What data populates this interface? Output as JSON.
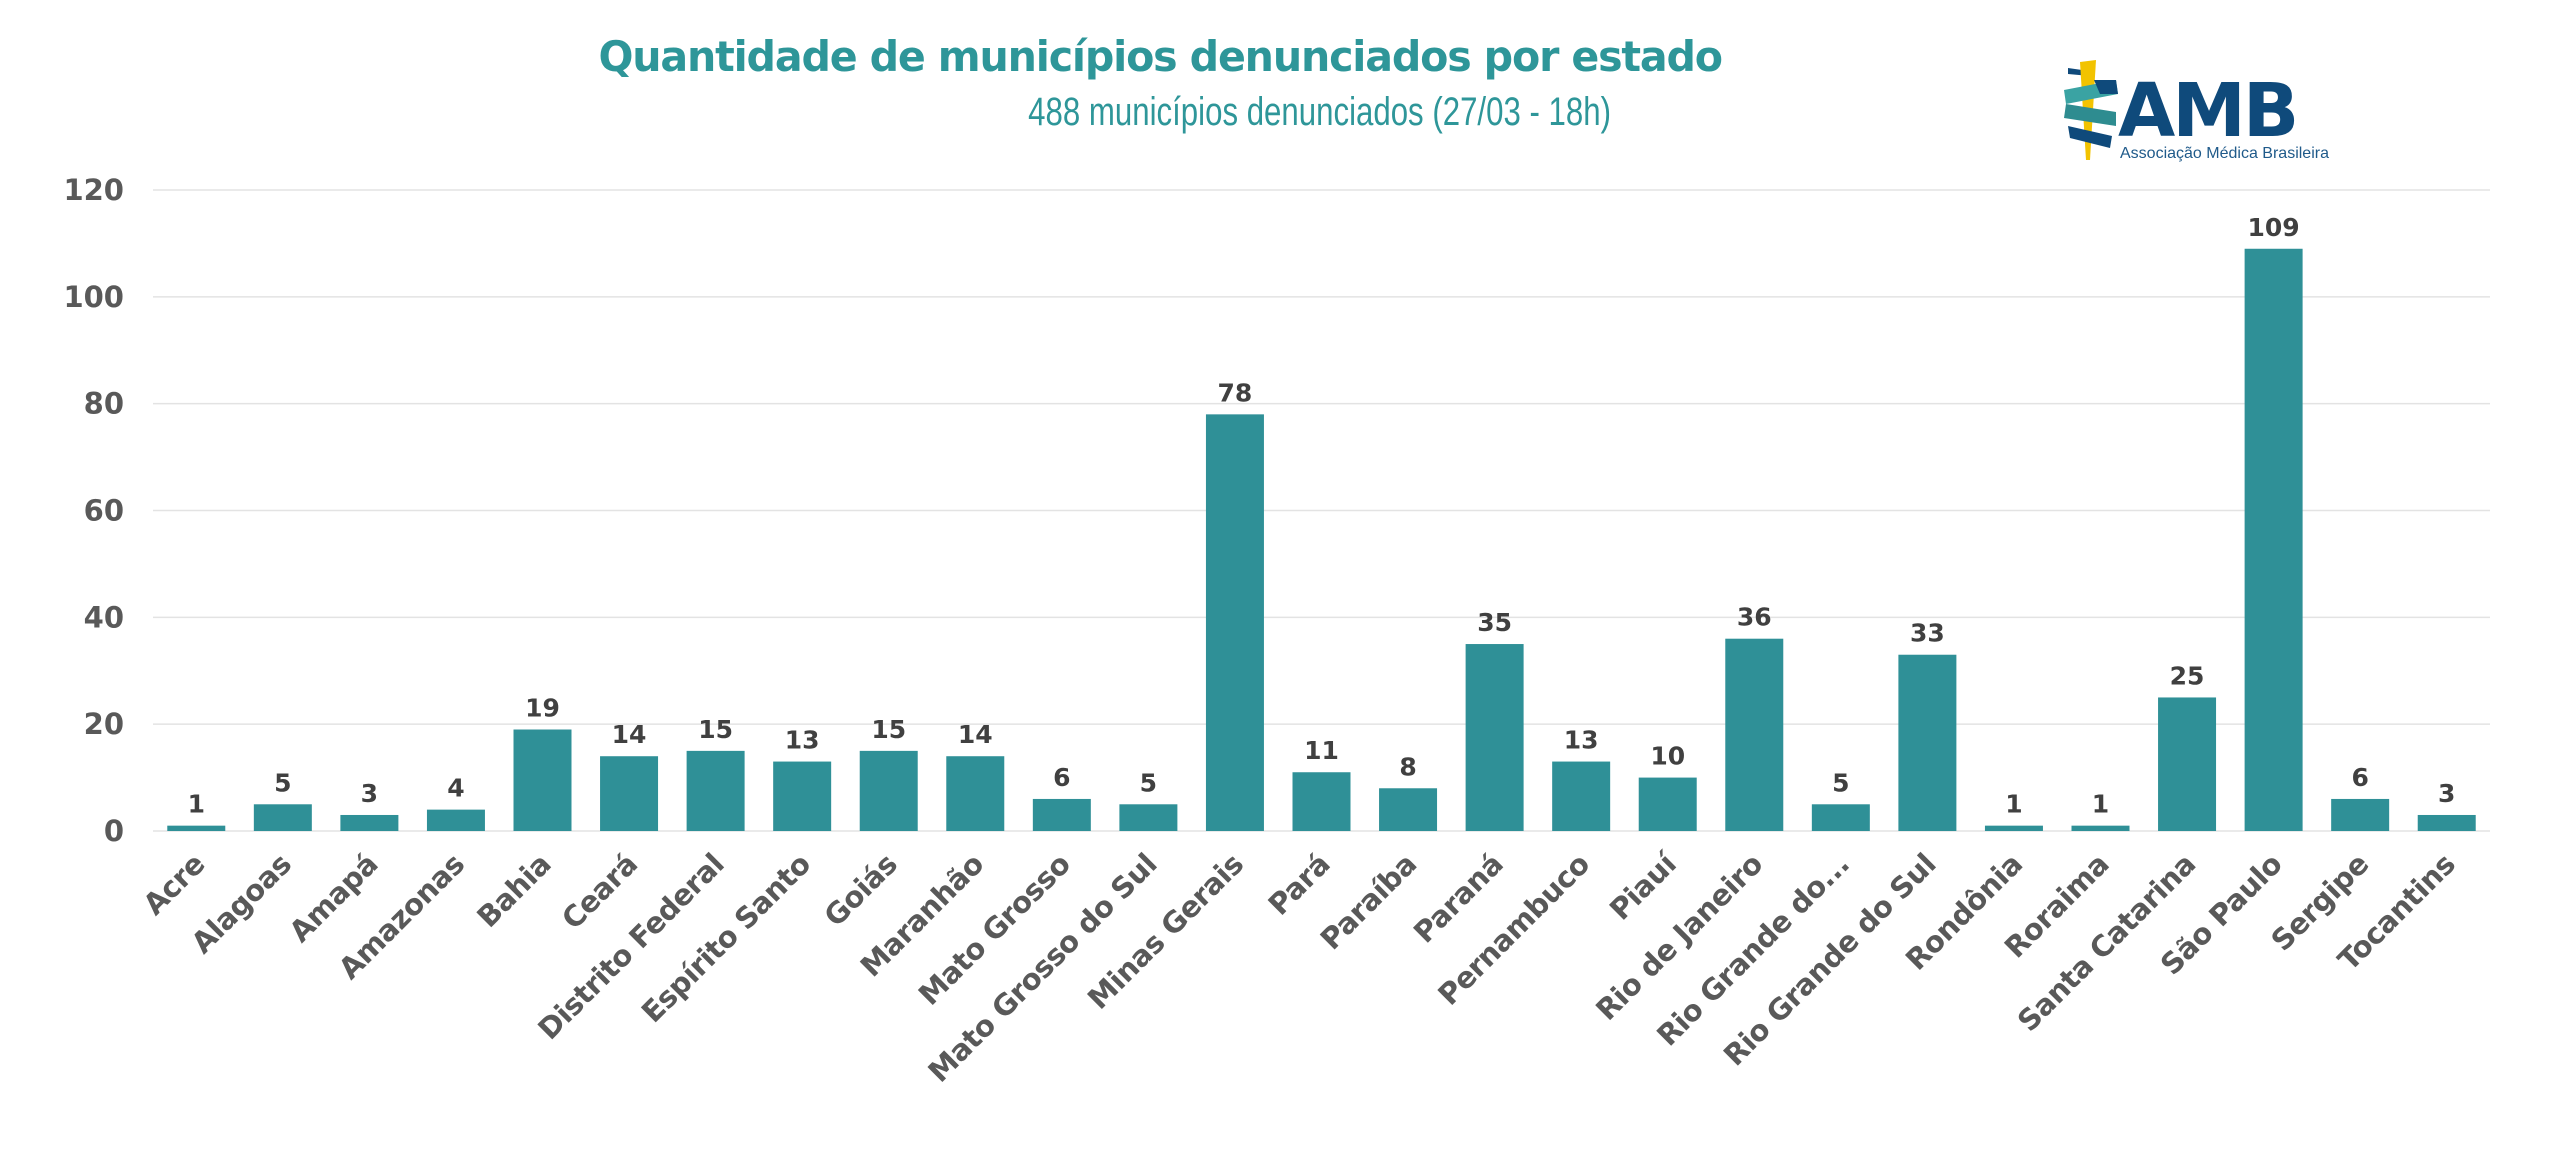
{
  "chart_data": {
    "type": "bar",
    "title": "Quantidade de municípios denunciados por estado",
    "subtitle": "488 municípios denunciados (27/03 - 18h)",
    "xlabel": "",
    "ylabel": "",
    "ylim": [
      0,
      120
    ],
    "yticks": [
      0,
      20,
      40,
      60,
      80,
      100,
      120
    ],
    "grid": true,
    "legend": "none",
    "bar_color": "#2F9097",
    "categories": [
      "Acre",
      "Alagoas",
      "Amapá",
      "Amazonas",
      "Bahia",
      "Ceará",
      "Distrito Federal",
      "Espírito Santo",
      "Goiás",
      "Maranhão",
      "Mato Grosso",
      "Mato Grosso do Sul",
      "Minas Gerais",
      "Pará",
      "Paraíba",
      "Paraná",
      "Pernambuco",
      "Piauí",
      "Rio de Janeiro",
      "Rio Grande do...",
      "Rio Grande do Sul",
      "Rondônia",
      "Roraima",
      "Santa Catarina",
      "São Paulo",
      "Sergipe",
      "Tocantins"
    ],
    "values": [
      1,
      5,
      3,
      4,
      19,
      14,
      15,
      13,
      15,
      14,
      6,
      5,
      78,
      11,
      8,
      35,
      13,
      10,
      36,
      5,
      33,
      1,
      1,
      25,
      109,
      6,
      3
    ]
  },
  "logo": {
    "name": "AMB",
    "tagline": "Associação Médica Brasileira",
    "colors": {
      "navy": "#0F4A7B",
      "teal": "#3AA3A3",
      "yellow": "#F2C300"
    }
  }
}
